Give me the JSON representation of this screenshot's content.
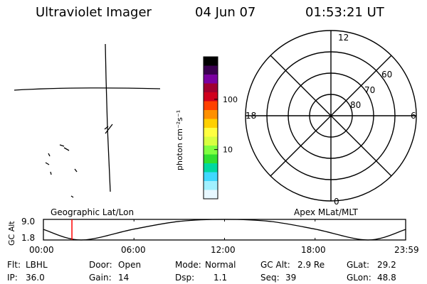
{
  "header": {
    "title": "Ultraviolet Imager",
    "date": "04 Jun 07",
    "time": "01:53:21 UT"
  },
  "map": {
    "left_label": "Geographic Lat/Lon",
    "right_label": "Apex MLat/MLT"
  },
  "colorbar": {
    "unit_label": "photon cm⁻²s⁻¹",
    "ticks": [
      {
        "value": 100,
        "label": "100"
      },
      {
        "value": 10,
        "label": "10"
      }
    ],
    "scale": "log",
    "colors": [
      "#000000",
      "#3a0050",
      "#7a00a0",
      "#a00030",
      "#d0001e",
      "#ff4000",
      "#ff9000",
      "#ffd000",
      "#ffff40",
      "#d8ff40",
      "#80ff40",
      "#30e030",
      "#00d8a0",
      "#40d8ff",
      "#a0f0ff",
      "#e8f8ff"
    ]
  },
  "polar": {
    "latitude_rings": [
      "80",
      "70",
      "60"
    ],
    "mlt_labels": {
      "top": "12",
      "right": "6",
      "bottom": "0",
      "left": "18"
    }
  },
  "chart_data": {
    "type": "line",
    "ylabel": "GC Alt",
    "ylim": [
      1.8,
      9.0
    ],
    "y_tick_labels": [
      "9.0",
      "1.8"
    ],
    "x_tick_labels": [
      "00:00",
      "06:00",
      "12:00",
      "18:00",
      "23:59"
    ],
    "x_hours": [
      0,
      2.5,
      6,
      9,
      12,
      15,
      18,
      21.5,
      24
    ],
    "gc_alt": [
      5.5,
      1.8,
      5.6,
      8.3,
      9.0,
      8.3,
      5.6,
      1.8,
      5.5
    ],
    "current_time_hour": 1.889,
    "series_color": "#000000",
    "marker_color": "#ff0000"
  },
  "status": {
    "filter_label": "Flt:",
    "filter_value": "LBHL",
    "ip_label": "IP:",
    "ip_value": "36.0",
    "door_label": "Door:",
    "door_value": "Open",
    "gain_label": "Gain:",
    "gain_value": "14",
    "mode_label": "Mode:",
    "mode_value": "Normal",
    "dsp_label": "Dsp:",
    "dsp_value": "1.1",
    "gcalt_label": "GC Alt:",
    "gcalt_value": "2.9 Re",
    "seq_label": "Seq:",
    "seq_value": "39",
    "glat_label": "GLat:",
    "glat_value": "29.2",
    "glon_label": "GLon:",
    "glon_value": "48.8"
  }
}
